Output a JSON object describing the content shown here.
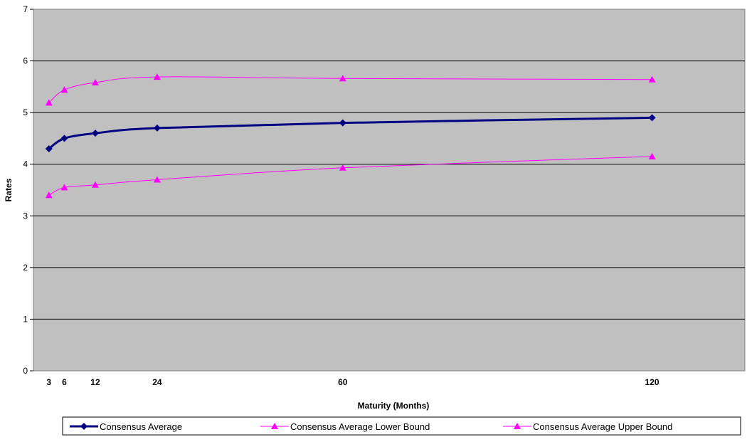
{
  "chart_data": {
    "type": "line",
    "title": "",
    "xlabel": "Maturity (Months)",
    "ylabel": "Rates",
    "x": [
      3,
      6,
      12,
      24,
      60,
      120
    ],
    "x_tick_labels": [
      "3",
      "6",
      "12",
      "24",
      "60",
      "120"
    ],
    "xlim": [
      0,
      138
    ],
    "ylim": [
      0,
      7
    ],
    "y_ticks": [
      0,
      1,
      2,
      3,
      4,
      5,
      6,
      7
    ],
    "grid": "horizontal",
    "plot_background": "#c0c0c0",
    "legend_position": "bottom",
    "series": [
      {
        "name": "Consensus Average",
        "values": [
          4.3,
          4.5,
          4.6,
          4.7,
          4.8,
          4.9
        ],
        "color": "#000080",
        "marker": "diamond",
        "line_weight": "thick"
      },
      {
        "name": "Consensus Average Lower Bound",
        "values": [
          3.4,
          3.55,
          3.6,
          3.7,
          3.93,
          4.15
        ],
        "color": "#ff00ff",
        "marker": "triangle",
        "line_weight": "thin"
      },
      {
        "name": "Consensus Average Upper Bound",
        "values": [
          5.19,
          5.44,
          5.58,
          5.69,
          5.66,
          5.64
        ],
        "color": "#ff00ff",
        "marker": "triangle",
        "line_weight": "thin"
      }
    ]
  }
}
